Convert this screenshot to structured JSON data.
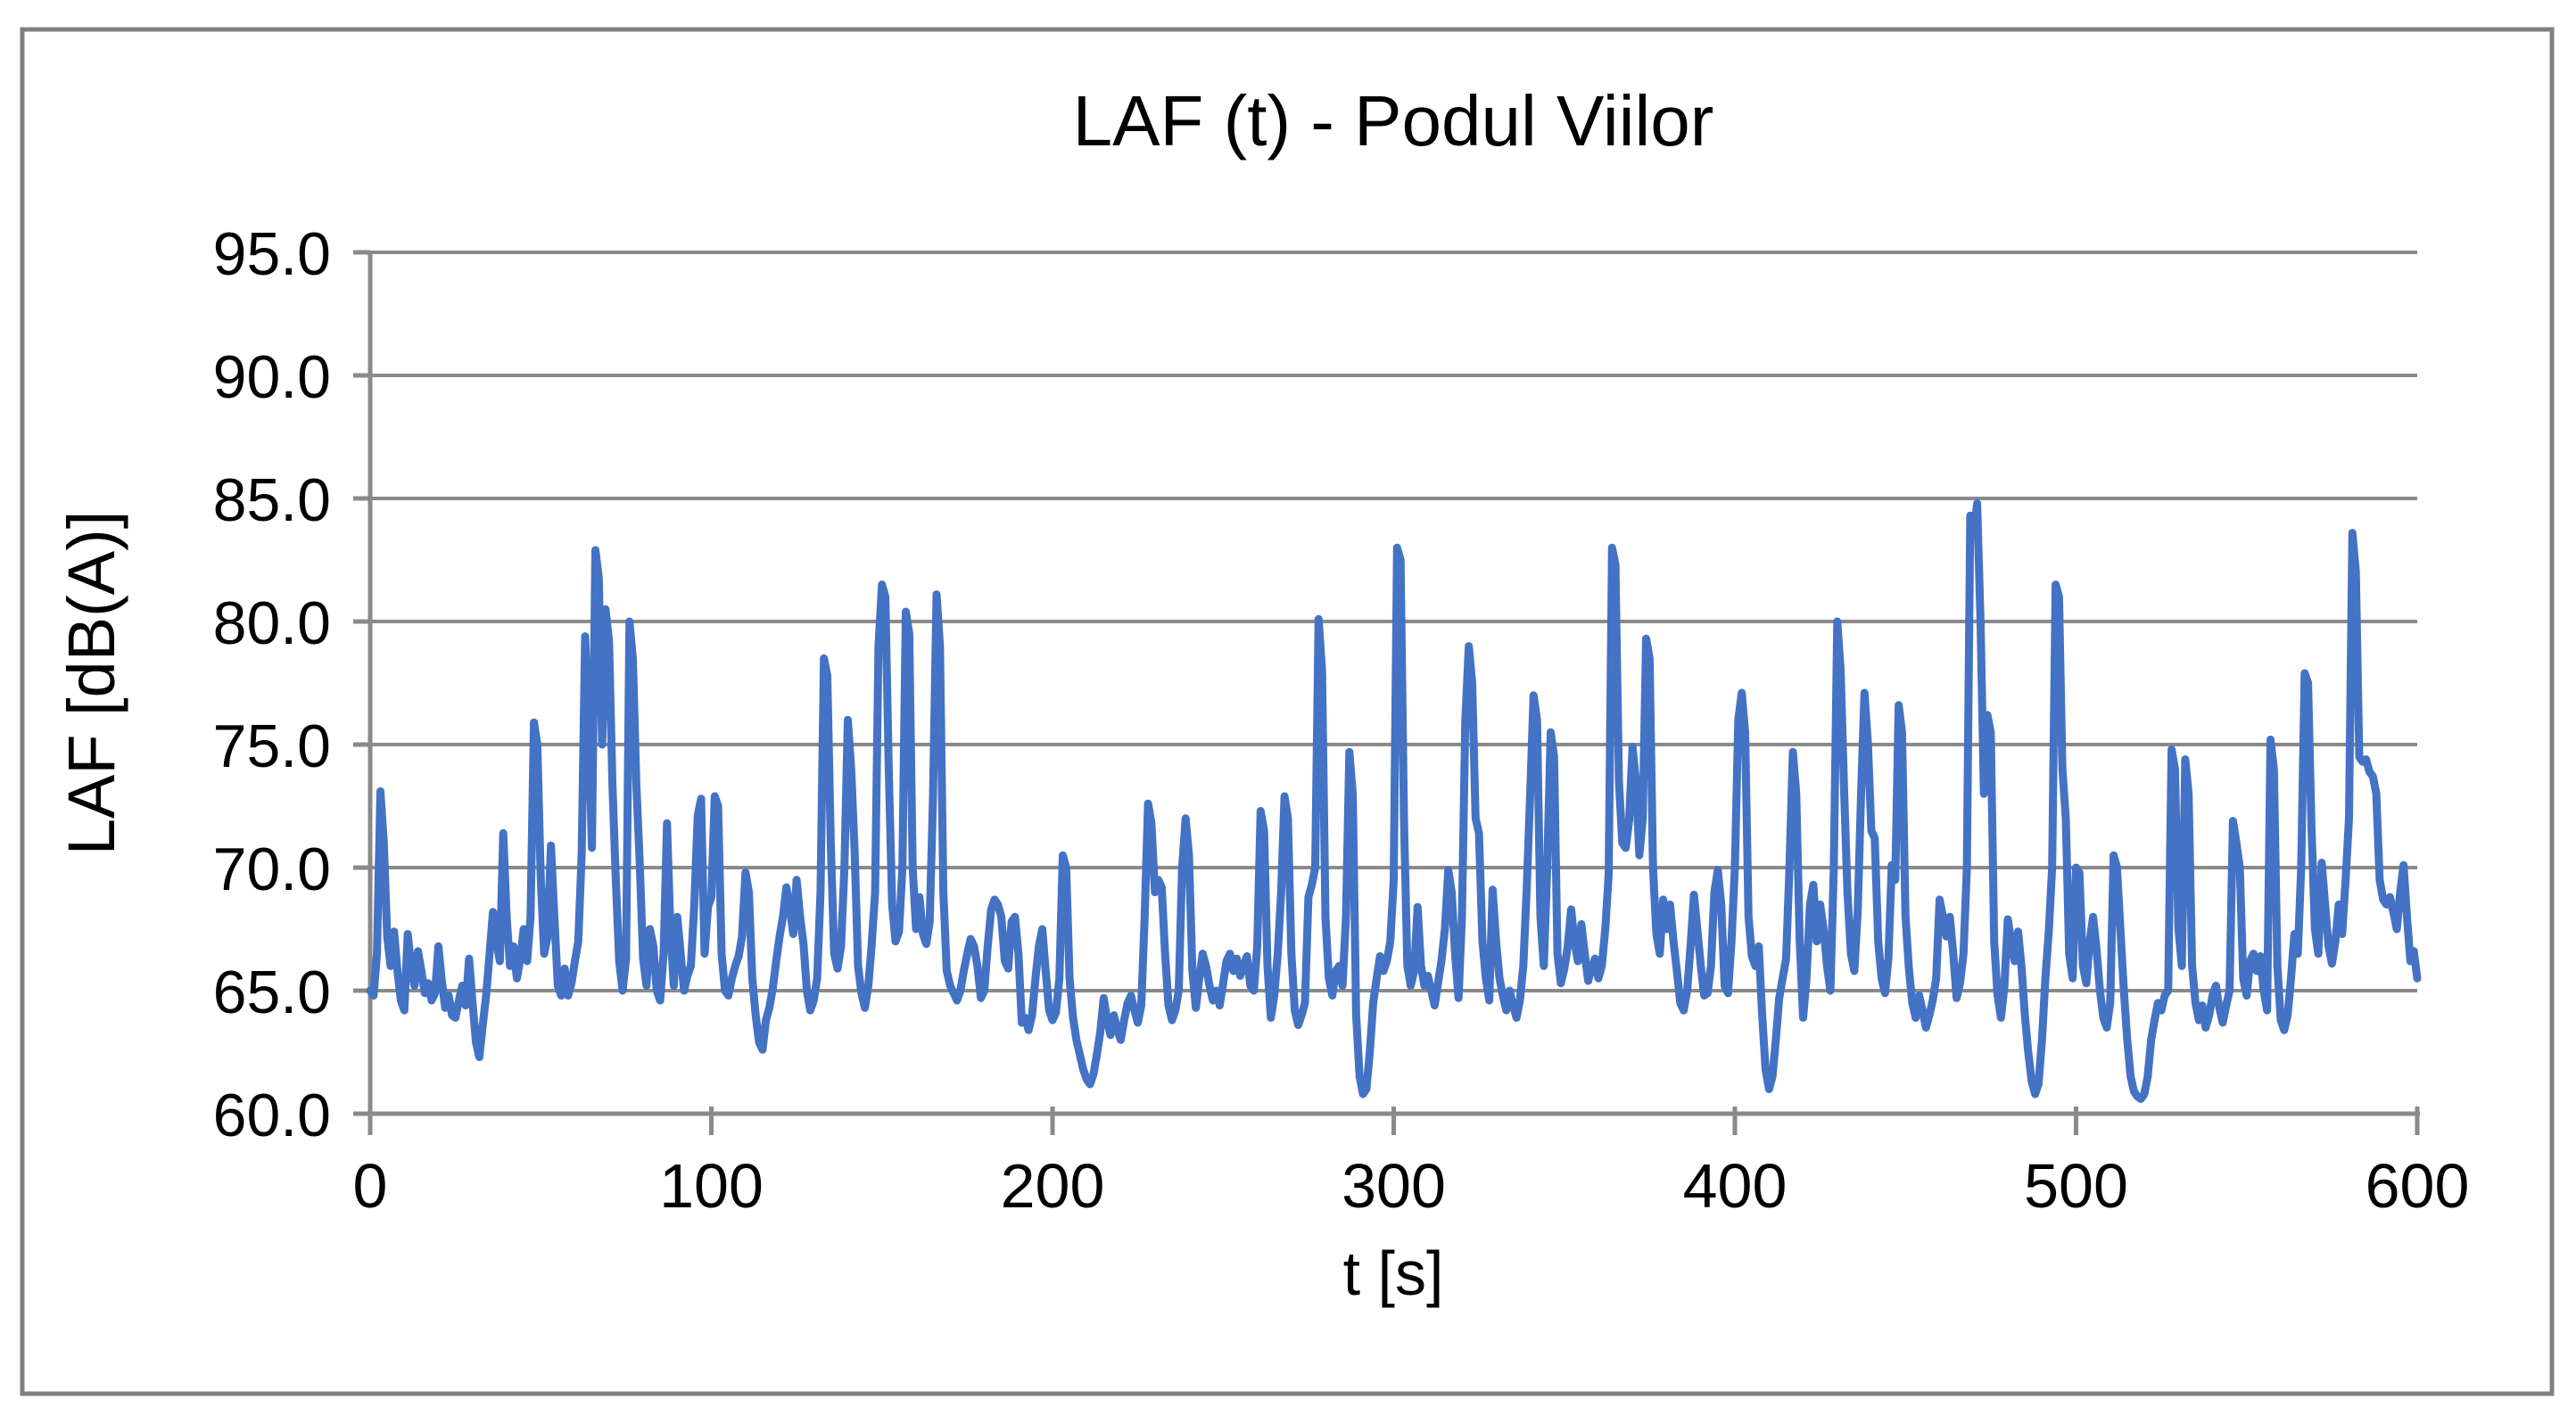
{
  "chart": {
    "title": "LAF (t) - Podul Viilor",
    "x_axis_title": "t [s]",
    "y_axis_title": "LAF [dB(A)]",
    "colors": {
      "series_line": "#4472C4",
      "gridline": "#8A8A8A",
      "axis_line": "#8A8A8A",
      "frame_border": "#808080",
      "text": "#000000",
      "background": "#FFFFFF"
    }
  },
  "chart_data": {
    "type": "line",
    "title": "LAF (t) - Podul Viilor",
    "xlabel": "t [s]",
    "ylabel": "LAF [dB(A)]",
    "xlim": [
      0,
      600
    ],
    "ylim": [
      60.0,
      95.0
    ],
    "x_ticks": [
      0,
      100,
      200,
      300,
      400,
      500,
      600
    ],
    "y_ticks": [
      95.0,
      90.0,
      85.0,
      80.0,
      75.0,
      70.0,
      65.0,
      60.0
    ],
    "y_tick_format_decimals": 1,
    "grid": "on",
    "legend": "none",
    "series": [
      {
        "name": "LAF",
        "color": "#4472C4",
        "x_start": 0,
        "x_step": 1,
        "values": [
          65.0,
          64.8,
          66.5,
          73.1,
          71.0,
          67.2,
          66.0,
          67.4,
          65.8,
          64.6,
          64.2,
          67.3,
          66.0,
          65.2,
          66.6,
          65.8,
          64.9,
          65.3,
          64.6,
          64.9,
          66.8,
          65.4,
          64.3,
          64.8,
          64.0,
          63.9,
          64.6,
          65.2,
          64.4,
          66.3,
          64.5,
          62.9,
          62.3,
          63.6,
          64.8,
          66.5,
          68.2,
          67.0,
          66.2,
          71.4,
          68.0,
          66.0,
          66.8,
          65.5,
          66.3,
          67.5,
          66.2,
          68.0,
          75.9,
          75.0,
          69.5,
          66.5,
          67.2,
          70.9,
          68.0,
          65.2,
          64.8,
          65.9,
          64.8,
          65.3,
          66.2,
          67.0,
          70.5,
          79.4,
          76.0,
          70.8,
          82.9,
          81.8,
          75.0,
          80.5,
          79.2,
          73.4,
          69.5,
          66.2,
          65.0,
          66.3,
          80.0,
          78.5,
          73.4,
          70.2,
          66.3,
          65.2,
          67.5,
          66.8,
          65.0,
          64.6,
          66.5,
          71.8,
          67.5,
          65.2,
          68.0,
          66.5,
          65.0,
          65.6,
          66.0,
          68.5,
          72.1,
          72.8,
          66.5,
          68.4,
          68.8,
          72.9,
          72.5,
          66.5,
          65.0,
          64.8,
          65.5,
          66.0,
          66.4,
          67.2,
          69.8,
          69.0,
          65.5,
          64.0,
          62.9,
          62.6,
          63.8,
          64.3,
          65.1,
          66.2,
          67.2,
          68.0,
          69.2,
          68.4,
          67.3,
          69.5,
          68.0,
          66.9,
          65.0,
          64.2,
          64.6,
          65.5,
          69.0,
          78.5,
          77.8,
          71.0,
          66.5,
          65.9,
          66.8,
          70.0,
          76.0,
          74.0,
          70.7,
          66.0,
          64.9,
          64.3,
          65.2,
          66.9,
          69.0,
          79.0,
          81.5,
          81.0,
          74.0,
          68.5,
          67.0,
          67.4,
          70.0,
          80.4,
          79.5,
          70.0,
          67.5,
          68.8,
          67.3,
          66.9,
          67.8,
          73.0,
          81.1,
          79.0,
          69.0,
          65.8,
          65.2,
          64.9,
          64.6,
          65.0,
          65.8,
          66.5,
          67.1,
          66.8,
          66.0,
          64.7,
          65.0,
          66.8,
          68.3,
          68.7,
          68.5,
          68.0,
          66.2,
          65.9,
          67.8,
          68.0,
          66.5,
          63.7,
          63.9,
          63.4,
          64.0,
          65.5,
          66.8,
          67.5,
          65.8,
          64.2,
          63.8,
          64.1,
          65.5,
          70.5,
          70.0,
          65.5,
          63.9,
          63.0,
          62.4,
          61.8,
          61.4,
          61.2,
          61.6,
          62.4,
          63.3,
          64.7,
          63.8,
          63.2,
          64.0,
          63.4,
          63.0,
          63.8,
          64.5,
          64.8,
          64.2,
          63.7,
          64.4,
          68.0,
          72.6,
          71.8,
          69.0,
          69.5,
          69.2,
          66.5,
          64.4,
          63.8,
          64.2,
          65.0,
          70.0,
          72.0,
          70.5,
          65.8,
          64.3,
          65.5,
          66.5,
          66.0,
          65.2,
          64.6,
          65.0,
          64.4,
          65.3,
          66.2,
          66.5,
          65.8,
          66.3,
          65.6,
          66.0,
          66.4,
          65.2,
          65.0,
          66.8,
          72.3,
          71.5,
          66.0,
          63.9,
          64.8,
          66.5,
          69.0,
          72.9,
          72.0,
          66.5,
          64.2,
          63.6,
          64.0,
          64.5,
          68.8,
          69.3,
          70.0,
          80.1,
          78.0,
          68.0,
          65.5,
          64.8,
          65.8,
          66.0,
          65.2,
          68.0,
          74.7,
          73.0,
          64.0,
          61.5,
          60.8,
          61.0,
          62.5,
          64.5,
          65.5,
          66.4,
          65.8,
          66.2,
          67.0,
          69.5,
          83.0,
          82.5,
          72.0,
          66.0,
          65.2,
          65.8,
          68.4,
          66.0,
          65.2,
          65.6,
          65.0,
          64.4,
          65.3,
          66.2,
          67.5,
          69.9,
          69.0,
          66.5,
          64.7,
          68.0,
          76.0,
          79.0,
          77.5,
          72.0,
          71.4,
          67.0,
          65.5,
          64.6,
          69.1,
          67.0,
          65.5,
          64.8,
          64.2,
          65.0,
          64.4,
          63.9,
          64.6,
          66.0,
          69.2,
          73.0,
          77.0,
          76.0,
          68.0,
          66.0,
          70.0,
          75.5,
          74.5,
          66.5,
          65.3,
          65.9,
          66.8,
          68.3,
          67.0,
          66.2,
          67.7,
          66.5,
          65.4,
          65.9,
          66.3,
          65.5,
          66.0,
          67.5,
          69.7,
          83.0,
          82.3,
          73.5,
          71.0,
          70.8,
          71.9,
          74.9,
          73.5,
          70.5,
          72.0,
          79.3,
          78.5,
          70.0,
          67.3,
          66.5,
          68.7,
          67.5,
          68.5,
          67.0,
          65.8,
          64.5,
          64.2,
          65.0,
          66.8,
          68.9,
          67.5,
          66.0,
          64.8,
          64.9,
          66.0,
          69.0,
          69.9,
          68.5,
          65.2,
          64.9,
          67.0,
          70.0,
          76.0,
          77.1,
          75.5,
          68.0,
          66.4,
          66.0,
          66.8,
          64.0,
          61.8,
          61.0,
          61.5,
          63.0,
          64.7,
          65.5,
          66.3,
          70.0,
          74.7,
          73.0,
          67.0,
          63.9,
          65.5,
          68.5,
          69.3,
          67.0,
          68.5,
          67.5,
          66.0,
          65.0,
          70.0,
          80.0,
          78.0,
          73.2,
          69.0,
          66.5,
          65.8,
          68.2,
          73.0,
          77.1,
          75.0,
          71.5,
          71.2,
          67.0,
          65.5,
          64.9,
          66.3,
          70.1,
          69.5,
          76.6,
          75.5,
          68.0,
          65.9,
          64.5,
          63.9,
          64.8,
          64.2,
          63.5,
          64.0,
          64.6,
          65.5,
          68.7,
          68.0,
          67.2,
          68.0,
          66.5,
          64.7,
          65.3,
          66.5,
          70.0,
          84.3,
          83.5,
          84.8,
          80.0,
          73.0,
          76.2,
          75.5,
          67.0,
          64.8,
          63.9,
          65.2,
          67.9,
          67.0,
          66.2,
          67.4,
          66.0,
          64.0,
          62.5,
          61.3,
          60.8,
          61.2,
          63.0,
          65.5,
          67.4,
          70.0,
          81.5,
          81.0,
          74.0,
          72.0,
          66.5,
          65.5,
          70.0,
          69.8,
          66.0,
          65.3,
          67.0,
          68.0,
          66.7,
          65.0,
          63.9,
          63.5,
          64.5,
          70.5,
          70.0,
          67.5,
          65.0,
          63.0,
          61.5,
          60.9,
          60.7,
          60.6,
          60.8,
          61.5,
          63.0,
          63.8,
          64.5,
          64.2,
          64.8,
          65.0,
          74.8,
          74.0,
          67.5,
          66.0,
          74.4,
          73.0,
          66.0,
          64.5,
          63.8,
          64.4,
          63.5,
          64.0,
          64.8,
          65.2,
          64.3,
          63.7,
          64.4,
          65.0,
          71.9,
          71.0,
          70.0,
          65.5,
          64.8,
          66.2,
          66.5,
          65.8,
          66.4,
          65.0,
          64.2,
          75.2,
          74.0,
          66.0,
          63.8,
          63.4,
          64.0,
          65.5,
          67.3,
          66.5,
          70.0,
          77.9,
          77.5,
          71.7,
          67.5,
          66.5,
          70.2,
          68.5,
          66.8,
          66.1,
          67.0,
          68.5,
          67.3,
          69.5,
          72.0,
          83.6,
          82.0,
          74.5,
          74.3,
          74.4,
          73.9,
          73.7,
          73.0,
          69.5,
          68.7,
          68.5,
          68.8,
          68.2,
          67.5,
          69.0,
          70.1,
          68.0,
          66.2,
          66.6,
          65.5
        ]
      }
    ]
  }
}
